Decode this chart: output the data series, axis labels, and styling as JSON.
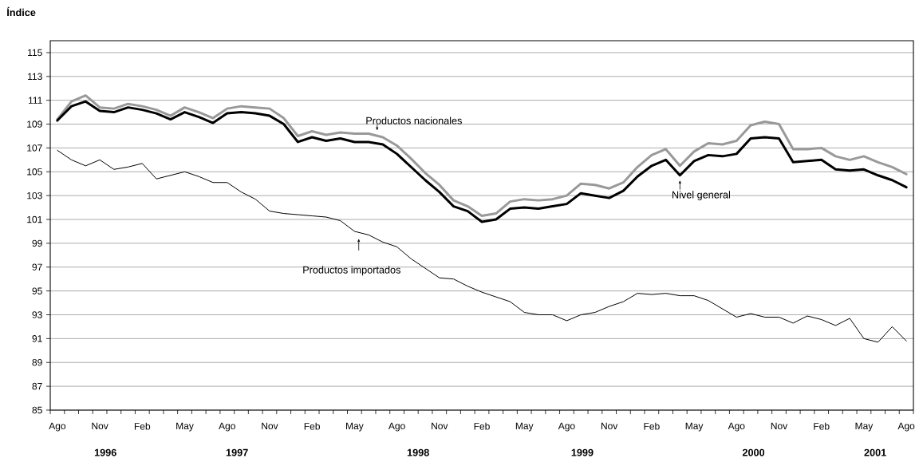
{
  "chart_data": {
    "type": "line",
    "ylabel": "Índice",
    "categories": [
      "Ago",
      null,
      null,
      "Nov",
      null,
      null,
      "Feb",
      null,
      null,
      "May",
      null,
      null,
      "Ago",
      null,
      null,
      "Nov",
      null,
      null,
      "Feb",
      null,
      null,
      "May",
      null,
      null,
      "Ago",
      null,
      null,
      "Nov",
      null,
      null,
      "Feb",
      null,
      null,
      "May",
      null,
      null,
      "Ago",
      null,
      null,
      "Nov",
      null,
      null,
      "Feb",
      null,
      null,
      "May",
      null,
      null,
      "Ago",
      null,
      null,
      "Nov",
      null,
      null,
      "Feb",
      null,
      null,
      "May",
      null,
      null,
      "Ago"
    ],
    "series": [
      {
        "name": "Productos nacionales",
        "color": "#999999",
        "values": [
          109.4,
          110.9,
          111.4,
          110.4,
          110.3,
          110.7,
          110.5,
          110.2,
          109.7,
          110.4,
          110.0,
          109.5,
          110.3,
          110.5,
          110.4,
          110.3,
          109.5,
          108.0,
          108.4,
          108.1,
          108.3,
          108.2,
          108.2,
          107.9,
          107.2,
          106.1,
          104.9,
          103.9,
          102.6,
          102.1,
          101.3,
          101.5,
          102.5,
          102.7,
          102.6,
          102.7,
          103.0,
          104.0,
          103.9,
          103.6,
          104.1,
          105.4,
          106.4,
          106.9,
          105.5,
          106.7,
          107.4,
          107.3,
          107.6,
          108.9,
          109.2,
          109.0,
          106.9,
          106.9,
          107.0,
          106.3,
          106.0,
          106.3,
          105.8,
          105.4,
          104.8
        ]
      },
      {
        "name": "Nivel general",
        "color": "#000000",
        "values": [
          109.3,
          110.5,
          110.9,
          110.1,
          110.0,
          110.4,
          110.2,
          109.9,
          109.4,
          110.0,
          109.6,
          109.1,
          109.9,
          110.0,
          109.9,
          109.7,
          109.0,
          107.5,
          107.9,
          107.6,
          107.8,
          107.5,
          107.5,
          107.3,
          106.5,
          105.4,
          104.3,
          103.3,
          102.1,
          101.7,
          100.8,
          101.0,
          101.9,
          102.0,
          101.9,
          102.1,
          102.3,
          103.2,
          103.0,
          102.8,
          103.4,
          104.6,
          105.5,
          106.0,
          104.7,
          105.9,
          106.4,
          106.3,
          106.5,
          107.8,
          107.9,
          107.8,
          105.8,
          105.9,
          106.0,
          105.2,
          105.1,
          105.2,
          104.7,
          104.3,
          103.7
        ]
      },
      {
        "name": "Productos importados",
        "color": "#000000",
        "values": [
          106.8,
          106.0,
          105.5,
          106.0,
          105.2,
          105.4,
          105.7,
          104.4,
          104.7,
          105.0,
          104.6,
          104.1,
          104.1,
          103.3,
          102.7,
          101.7,
          101.5,
          101.4,
          101.3,
          101.2,
          100.9,
          100.0,
          99.7,
          99.1,
          98.7,
          97.7,
          96.9,
          96.1,
          96.0,
          95.4,
          94.9,
          94.5,
          94.1,
          93.2,
          93.0,
          93.0,
          92.5,
          93.0,
          93.2,
          93.7,
          94.1,
          94.8,
          94.7,
          94.8,
          94.6,
          94.6,
          94.2,
          93.5,
          92.8,
          93.1,
          92.8,
          92.8,
          92.3,
          92.9,
          92.6,
          92.1,
          92.7,
          91.0,
          90.7,
          92.0,
          90.8
        ]
      }
    ],
    "annotations": [
      "1996",
      "1997",
      "1998",
      "1999",
      "2000",
      "2001"
    ],
    "ylim": [
      85,
      116
    ],
    "yticks": [
      85,
      87,
      89,
      91,
      93,
      95,
      97,
      99,
      101,
      103,
      105,
      107,
      109,
      111,
      113,
      115
    ],
    "grid": "y",
    "marker": "none",
    "line_style": "solid"
  }
}
